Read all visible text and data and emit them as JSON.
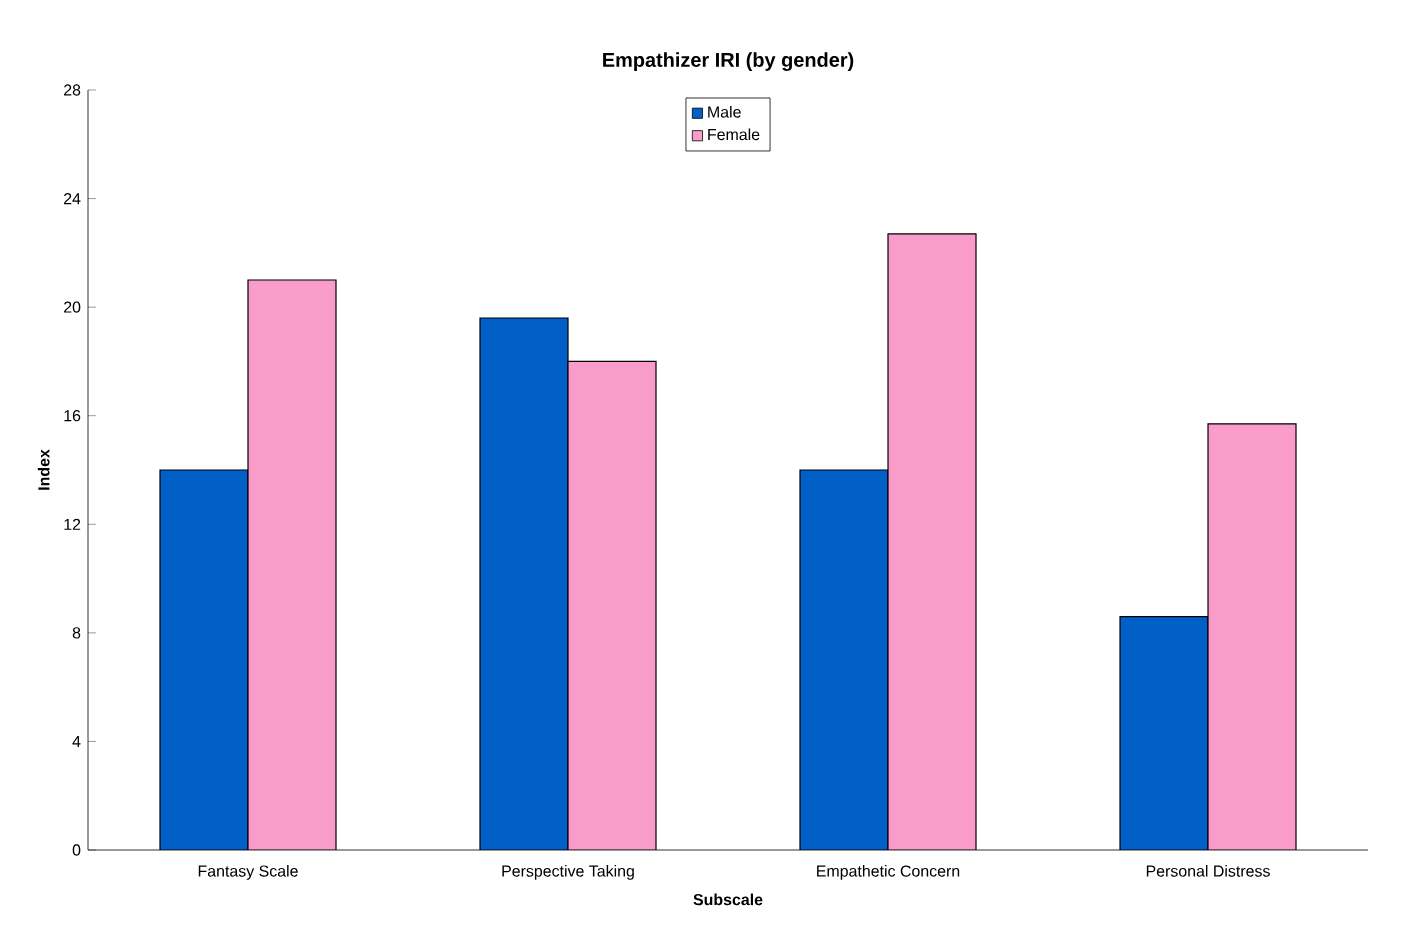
{
  "chart_data": {
    "type": "bar",
    "title": "Empathizer IRI (by gender)",
    "xlabel": "Subscale",
    "ylabel": "Index",
    "categories": [
      "Fantasy Scale",
      "Perspective Taking",
      "Empathetic Concern",
      "Personal Distress"
    ],
    "series": [
      {
        "name": "Male",
        "color": "#0060c8",
        "values": [
          14.0,
          19.6,
          14.0,
          8.6
        ]
      },
      {
        "name": "Female",
        "color": "#f99cc9",
        "values": [
          21.0,
          18.0,
          22.7,
          15.7
        ]
      }
    ],
    "ylim": [
      0,
      28
    ],
    "yticks": [
      0,
      4,
      8,
      12,
      16,
      20,
      24,
      28
    ],
    "grid": false,
    "legend": "top"
  }
}
